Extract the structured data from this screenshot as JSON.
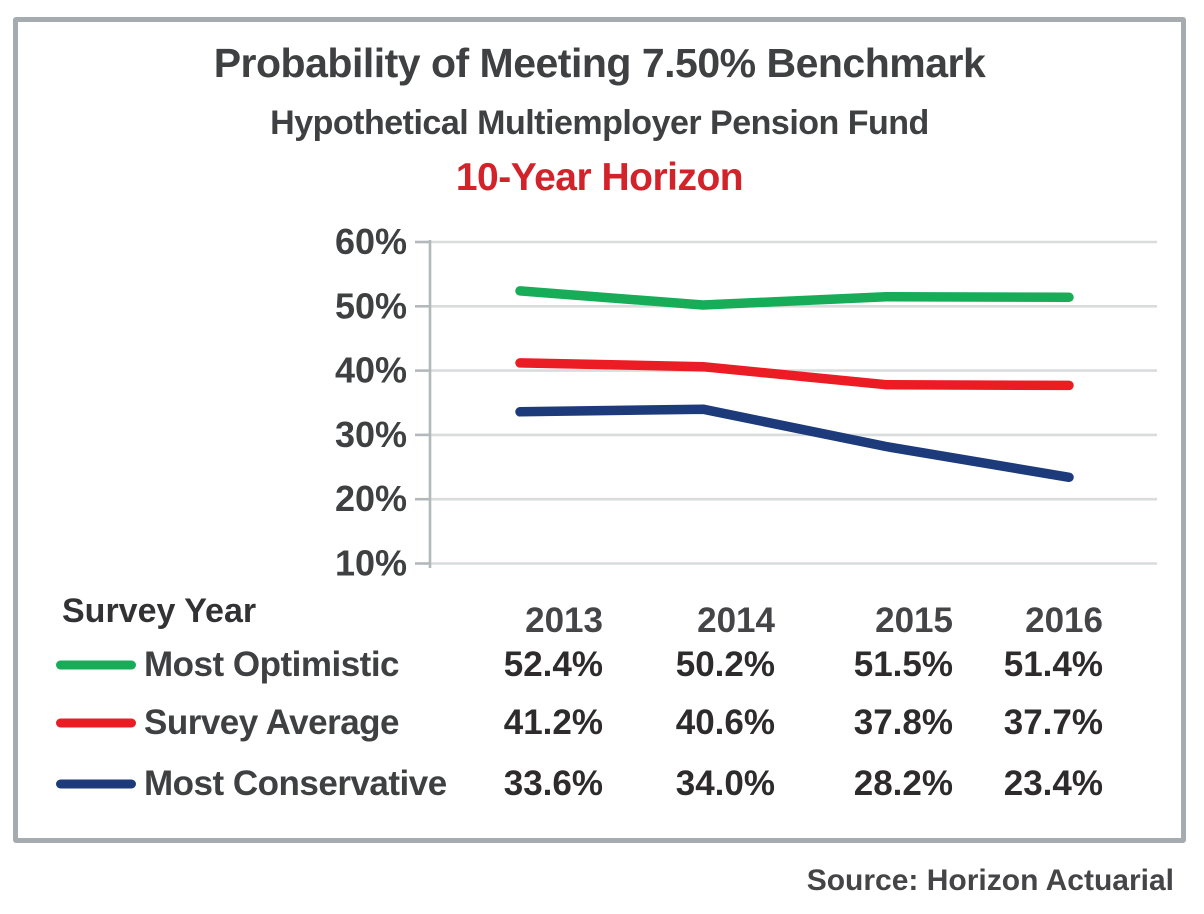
{
  "header": {
    "title": "Probability of Meeting 7.50% Benchmark",
    "subtitle": "Hypothetical Multiemployer Pension Fund",
    "horizon_label": "10-Year Horizon",
    "horizon_color": "#d2232a"
  },
  "chart_data": {
    "type": "line",
    "title": "Probability of Meeting 7.50% Benchmark",
    "subtitle": "Hypothetical Multiemployer Pension Fund",
    "annotation": "10-Year Horizon",
    "x_header": "Survey Year",
    "categories": [
      "2013",
      "2014",
      "2015",
      "2016"
    ],
    "series": [
      {
        "name": "Most Optimistic",
        "color": "#17ad58",
        "values": [
          52.4,
          50.2,
          51.5,
          51.4
        ],
        "display": [
          "52.4%",
          "50.2%",
          "51.5%",
          "51.4%"
        ]
      },
      {
        "name": "Survey Average",
        "color": "#ec1c24",
        "values": [
          41.2,
          40.6,
          37.8,
          37.7
        ],
        "display": [
          "41.2%",
          "40.6%",
          "37.8%",
          "37.7%"
        ]
      },
      {
        "name": "Most Conservative",
        "color": "#1d3b7a",
        "values": [
          33.6,
          34.0,
          28.2,
          23.4
        ],
        "display": [
          "33.6%",
          "34.0%",
          "28.2%",
          "23.4%"
        ]
      }
    ],
    "y_ticks": [
      {
        "value": 60,
        "label": "60%"
      },
      {
        "value": 50,
        "label": "50%"
      },
      {
        "value": 40,
        "label": "40%"
      },
      {
        "value": 30,
        "label": "30%"
      },
      {
        "value": 20,
        "label": "20%"
      },
      {
        "value": 10,
        "label": "10%"
      }
    ],
    "ylim": [
      10,
      60
    ],
    "grid": true,
    "legend_position": "bottom-left-table"
  },
  "footer": {
    "source": "Source: Horizon Actuarial"
  },
  "colors": {
    "grid": "#d9dcdd",
    "axis": "#b3b8bb",
    "frame_border": "#a5abae",
    "text_dark": "#3f4041"
  }
}
